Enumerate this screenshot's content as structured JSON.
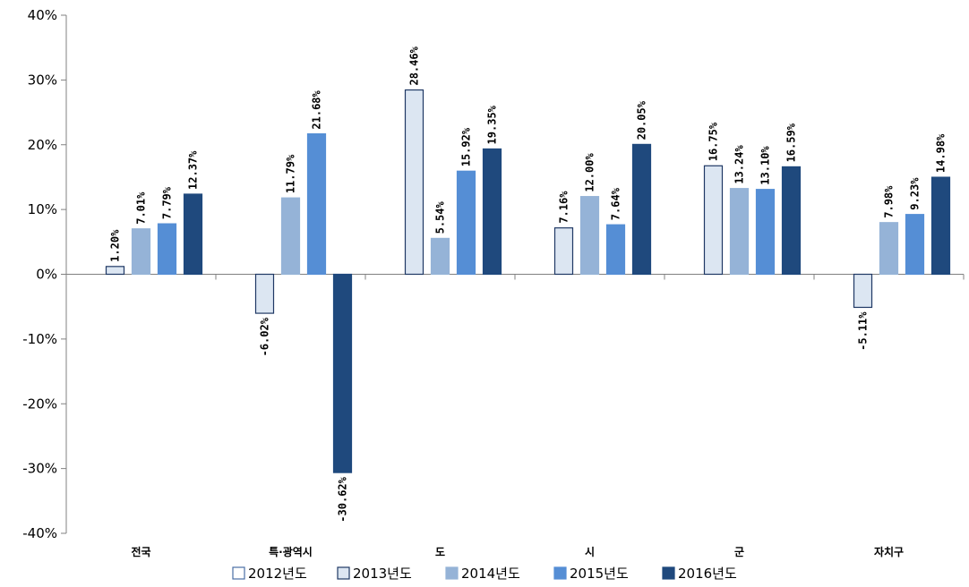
{
  "chart_data": {
    "type": "bar",
    "title": "",
    "xlabel": "",
    "ylabel": "",
    "ylim": [
      -0.4,
      0.4
    ],
    "yticks": [
      0.4,
      0.3,
      0.2,
      0.1,
      0,
      -0.1,
      -0.2,
      -0.3,
      -0.4
    ],
    "ytick_labels": [
      "40%",
      "30%",
      "20%",
      "10%",
      "0%",
      "-10%",
      "-20%",
      "-30%",
      "-40%"
    ],
    "categories": [
      "전국",
      "특·광역시",
      "도",
      "시",
      "군",
      "자치구"
    ],
    "legend_position": "bottom",
    "grid": false,
    "series": [
      {
        "name": "2012년도",
        "color": "#ffffff",
        "stroke": "#4a6fa5",
        "values": [
          null,
          null,
          null,
          null,
          null,
          null
        ],
        "labels": [
          "",
          "",
          "",
          "",
          "",
          ""
        ]
      },
      {
        "name": "2013년도",
        "color": "#dce6f2",
        "stroke": "#1f3864",
        "values": [
          0.012,
          -0.0602,
          0.2846,
          0.0716,
          0.1675,
          -0.0511
        ],
        "labels": [
          "1.20%",
          "-6.02%",
          "28.46%",
          "7.16%",
          "16.75%",
          "-5.11%"
        ]
      },
      {
        "name": "2014년도",
        "color": "#95b3d7",
        "stroke": "#95b3d7",
        "values": [
          0.0701,
          0.1179,
          0.0554,
          0.12,
          0.1324,
          0.0798
        ],
        "labels": [
          "7.01%",
          "11.79%",
          "5.54%",
          "12.00%",
          "13.24%",
          "7.98%"
        ]
      },
      {
        "name": "2015년도",
        "color": "#558ed5",
        "stroke": "#558ed5",
        "values": [
          0.0779,
          0.2168,
          0.1592,
          0.0764,
          0.131,
          0.0923
        ],
        "labels": [
          "7.79%",
          "21.68%",
          "15.92%",
          "7.64%",
          "13.10%",
          "9.23%"
        ]
      },
      {
        "name": "2016년도",
        "color": "#1f497d",
        "stroke": "#1f497d",
        "values": [
          0.1237,
          -0.3062,
          0.1935,
          0.2005,
          0.1659,
          0.1498
        ],
        "labels": [
          "12.37%",
          "-30.62%",
          "19.35%",
          "20.05%",
          "16.59%",
          "14.98%"
        ]
      }
    ]
  }
}
